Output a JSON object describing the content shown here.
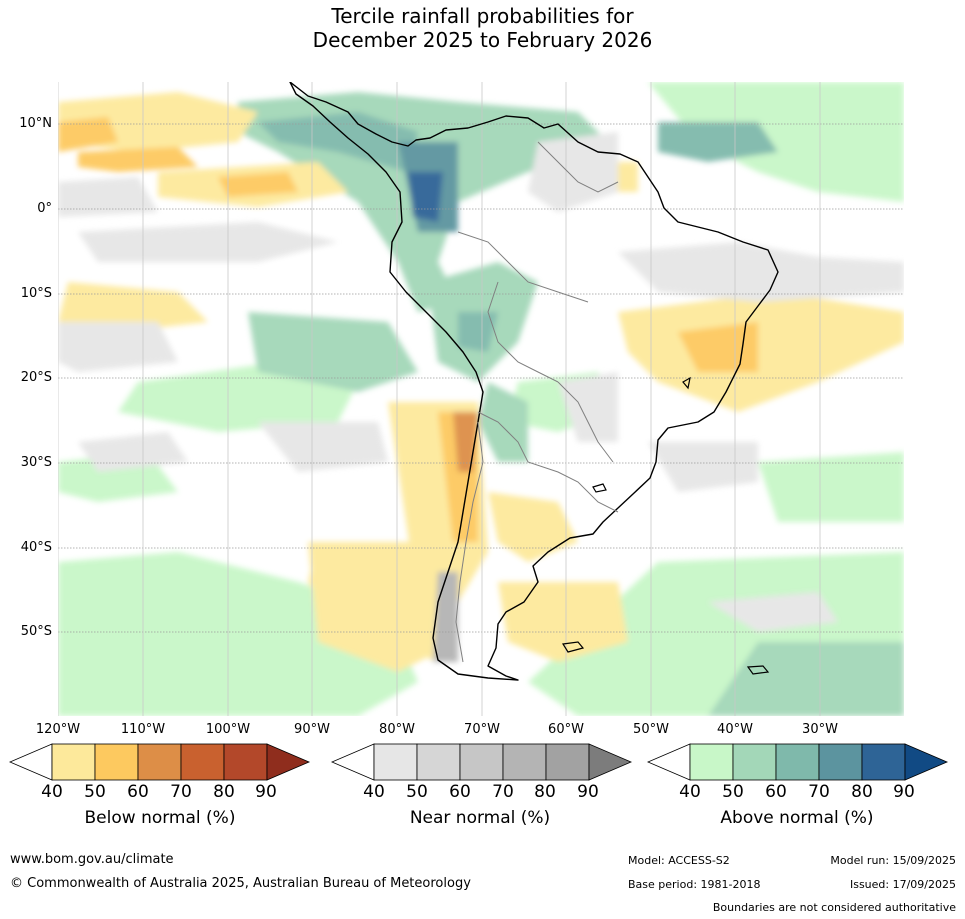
{
  "title_line1": "Tercile rainfall probabilities for",
  "title_line2": "December 2025 to February 2026",
  "lat_labels": [
    "10°N",
    "0°",
    "10°S",
    "20°S",
    "30°S",
    "40°S",
    "50°S"
  ],
  "lon_labels": [
    "120°W",
    "110°W",
    "100°W",
    "90°W",
    "80°W",
    "70°W",
    "60°W",
    "50°W",
    "40°W",
    "30°W"
  ],
  "legends": {
    "below": {
      "title": "Below normal (%)",
      "ticks": [
        "40",
        "50",
        "60",
        "70",
        "80",
        "90"
      ],
      "colors": [
        "#fde99b",
        "#fdc95f",
        "#dd8e47",
        "#c9612f",
        "#b3482a",
        "#8f2d1d"
      ]
    },
    "near": {
      "title": "Near normal (%)",
      "ticks": [
        "40",
        "50",
        "60",
        "70",
        "80",
        "90"
      ],
      "colors": [
        "#e6e6e6",
        "#d6d6d6",
        "#c6c6c6",
        "#b4b4b4",
        "#a2a2a2",
        "#7c7c7c"
      ]
    },
    "above": {
      "title": "Above normal (%)",
      "ticks": [
        "40",
        "50",
        "60",
        "70",
        "80",
        "90"
      ],
      "colors": [
        "#c8f7c8",
        "#a3d7b8",
        "#7fb9ab",
        "#5c949f",
        "#2e6496",
        "#114a84"
      ]
    }
  },
  "footer": {
    "url": "www.bom.gov.au/climate",
    "copyright": "© Commonwealth of Australia 2025, Australian Bureau of Meteorology",
    "model": "Model: ACCESS-S2",
    "model_run": "Model run: 15/09/2025",
    "base_period": "Base period: 1981-2018",
    "issued": "Issued: 17/09/2025",
    "boundaries": "Boundaries are not considered authoritative"
  }
}
